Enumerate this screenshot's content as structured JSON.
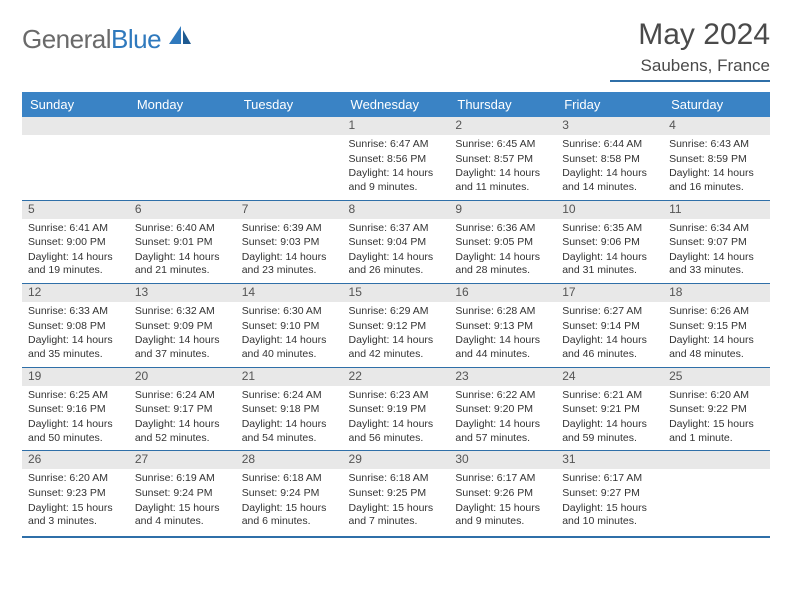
{
  "logo": {
    "text1": "General",
    "text2": "Blue"
  },
  "title": "May 2024",
  "location": "Saubens, France",
  "colors": {
    "headerBar": "#3a83c5",
    "divider": "#2f6fa8",
    "dayNumBg": "#e8e8e8",
    "logoBlue": "#2f79bd",
    "textGray": "#4a4a4a"
  },
  "weekDays": [
    "Sunday",
    "Monday",
    "Tuesday",
    "Wednesday",
    "Thursday",
    "Friday",
    "Saturday"
  ],
  "weeks": [
    [
      null,
      null,
      null,
      {
        "n": "1",
        "sunrise": "6:47 AM",
        "sunset": "8:56 PM",
        "daylight": "14 hours and 9 minutes."
      },
      {
        "n": "2",
        "sunrise": "6:45 AM",
        "sunset": "8:57 PM",
        "daylight": "14 hours and 11 minutes."
      },
      {
        "n": "3",
        "sunrise": "6:44 AM",
        "sunset": "8:58 PM",
        "daylight": "14 hours and 14 minutes."
      },
      {
        "n": "4",
        "sunrise": "6:43 AM",
        "sunset": "8:59 PM",
        "daylight": "14 hours and 16 minutes."
      }
    ],
    [
      {
        "n": "5",
        "sunrise": "6:41 AM",
        "sunset": "9:00 PM",
        "daylight": "14 hours and 19 minutes."
      },
      {
        "n": "6",
        "sunrise": "6:40 AM",
        "sunset": "9:01 PM",
        "daylight": "14 hours and 21 minutes."
      },
      {
        "n": "7",
        "sunrise": "6:39 AM",
        "sunset": "9:03 PM",
        "daylight": "14 hours and 23 minutes."
      },
      {
        "n": "8",
        "sunrise": "6:37 AM",
        "sunset": "9:04 PM",
        "daylight": "14 hours and 26 minutes."
      },
      {
        "n": "9",
        "sunrise": "6:36 AM",
        "sunset": "9:05 PM",
        "daylight": "14 hours and 28 minutes."
      },
      {
        "n": "10",
        "sunrise": "6:35 AM",
        "sunset": "9:06 PM",
        "daylight": "14 hours and 31 minutes."
      },
      {
        "n": "11",
        "sunrise": "6:34 AM",
        "sunset": "9:07 PM",
        "daylight": "14 hours and 33 minutes."
      }
    ],
    [
      {
        "n": "12",
        "sunrise": "6:33 AM",
        "sunset": "9:08 PM",
        "daylight": "14 hours and 35 minutes."
      },
      {
        "n": "13",
        "sunrise": "6:32 AM",
        "sunset": "9:09 PM",
        "daylight": "14 hours and 37 minutes."
      },
      {
        "n": "14",
        "sunrise": "6:30 AM",
        "sunset": "9:10 PM",
        "daylight": "14 hours and 40 minutes."
      },
      {
        "n": "15",
        "sunrise": "6:29 AM",
        "sunset": "9:12 PM",
        "daylight": "14 hours and 42 minutes."
      },
      {
        "n": "16",
        "sunrise": "6:28 AM",
        "sunset": "9:13 PM",
        "daylight": "14 hours and 44 minutes."
      },
      {
        "n": "17",
        "sunrise": "6:27 AM",
        "sunset": "9:14 PM",
        "daylight": "14 hours and 46 minutes."
      },
      {
        "n": "18",
        "sunrise": "6:26 AM",
        "sunset": "9:15 PM",
        "daylight": "14 hours and 48 minutes."
      }
    ],
    [
      {
        "n": "19",
        "sunrise": "6:25 AM",
        "sunset": "9:16 PM",
        "daylight": "14 hours and 50 minutes."
      },
      {
        "n": "20",
        "sunrise": "6:24 AM",
        "sunset": "9:17 PM",
        "daylight": "14 hours and 52 minutes."
      },
      {
        "n": "21",
        "sunrise": "6:24 AM",
        "sunset": "9:18 PM",
        "daylight": "14 hours and 54 minutes."
      },
      {
        "n": "22",
        "sunrise": "6:23 AM",
        "sunset": "9:19 PM",
        "daylight": "14 hours and 56 minutes."
      },
      {
        "n": "23",
        "sunrise": "6:22 AM",
        "sunset": "9:20 PM",
        "daylight": "14 hours and 57 minutes."
      },
      {
        "n": "24",
        "sunrise": "6:21 AM",
        "sunset": "9:21 PM",
        "daylight": "14 hours and 59 minutes."
      },
      {
        "n": "25",
        "sunrise": "6:20 AM",
        "sunset": "9:22 PM",
        "daylight": "15 hours and 1 minute."
      }
    ],
    [
      {
        "n": "26",
        "sunrise": "6:20 AM",
        "sunset": "9:23 PM",
        "daylight": "15 hours and 3 minutes."
      },
      {
        "n": "27",
        "sunrise": "6:19 AM",
        "sunset": "9:24 PM",
        "daylight": "15 hours and 4 minutes."
      },
      {
        "n": "28",
        "sunrise": "6:18 AM",
        "sunset": "9:24 PM",
        "daylight": "15 hours and 6 minutes."
      },
      {
        "n": "29",
        "sunrise": "6:18 AM",
        "sunset": "9:25 PM",
        "daylight": "15 hours and 7 minutes."
      },
      {
        "n": "30",
        "sunrise": "6:17 AM",
        "sunset": "9:26 PM",
        "daylight": "15 hours and 9 minutes."
      },
      {
        "n": "31",
        "sunrise": "6:17 AM",
        "sunset": "9:27 PM",
        "daylight": "15 hours and 10 minutes."
      },
      null
    ]
  ],
  "labels": {
    "sunrise": "Sunrise: ",
    "sunset": "Sunset: ",
    "daylight": "Daylight: "
  }
}
